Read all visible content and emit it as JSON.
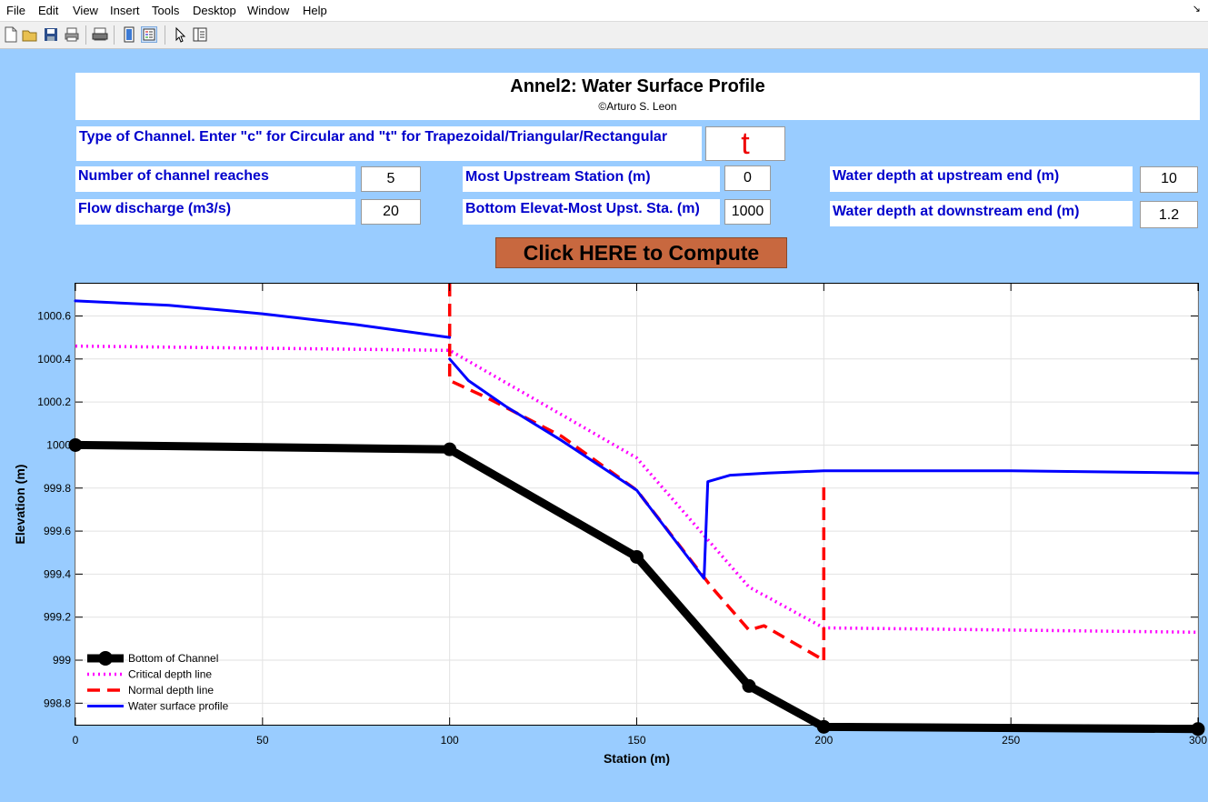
{
  "menu": [
    "File",
    "Edit",
    "View",
    "Insert",
    "Tools",
    "Desktop",
    "Window",
    "Help"
  ],
  "menu_corner_icon": "figure-dock-arrow-icon",
  "toolbar": {
    "icons": [
      "new-figure-icon",
      "open-file-icon",
      "save-icon",
      "print-icon",
      "print-preview-icon",
      "colorbar-icon",
      "legend-icon",
      "pointer-arrow-icon",
      "property-editor-icon"
    ]
  },
  "header": {
    "title": "Annel2: Water Surface Profile",
    "subtitle": "©Arturo S. Leon"
  },
  "form": {
    "channel_type_label": "Type of Channel. Enter \"c\" for Circular and \"t\" for Trapezoidal/Triangular/Rectangular",
    "channel_type_value": "t",
    "num_reaches_label": "Number of channel reaches",
    "num_reaches_value": "5",
    "flow_label": "Flow discharge (m3/s)",
    "flow_value": "20",
    "upstream_station_label": "Most Upstream Station (m)",
    "upstream_station_value": "0",
    "bottom_elev_label": "Bottom Elevat-Most Upst. Sta. (m)",
    "bottom_elev_value": "1000",
    "depth_up_label": "Water depth at upstream end (m)",
    "depth_up_value": "10",
    "depth_down_label": "Water depth at downstream end (m)",
    "depth_down_value": "1.2",
    "compute_label": "Click HERE to Compute"
  },
  "chart_data": {
    "type": "line",
    "xlabel": "Station (m)",
    "ylabel": "Elevation (m)",
    "xlim": [
      0,
      300
    ],
    "ylim": [
      998.7,
      1000.75
    ],
    "xticks": [
      0,
      50,
      100,
      150,
      200,
      250,
      300
    ],
    "yticks": [
      998.8,
      999,
      999.2,
      999.4,
      999.6,
      999.8,
      1000,
      1000.2,
      1000.4,
      1000.6
    ],
    "ytick_labels": [
      "998.8",
      "999",
      "999.2",
      "999.4",
      "999.6",
      "999.8",
      "1000",
      "1000.2",
      "1000.4",
      "1000.6"
    ],
    "grid": true,
    "legend_position": "bottom-left",
    "series": [
      {
        "name": "Bottom of Channel",
        "color": "#000000",
        "style": "solid-thick-markers",
        "points": [
          [
            0,
            1000.0
          ],
          [
            100,
            999.98
          ],
          [
            150,
            999.48
          ],
          [
            180,
            998.88
          ],
          [
            200,
            998.69
          ],
          [
            300,
            998.68
          ]
        ]
      },
      {
        "name": "Critical depth line",
        "color": "#ff00ff",
        "style": "dotted",
        "points": [
          [
            0,
            1000.46
          ],
          [
            100,
            1000.44
          ],
          [
            150,
            999.94
          ],
          [
            180,
            999.34
          ],
          [
            200,
            999.15
          ],
          [
            300,
            999.13
          ]
        ]
      },
      {
        "name": "Normal depth line",
        "color": "#ff0000",
        "style": "dashed",
        "segments": [
          [
            [
              100,
              1000.75
            ],
            [
              100,
              1000.3
            ],
            [
              110,
              1000.22
            ],
            [
              130,
              1000.04
            ],
            [
              150,
              999.79
            ],
            [
              170,
              999.34
            ],
            [
              180,
              999.14
            ],
            [
              184,
              999.16
            ],
            [
              200,
              999.0
            ]
          ],
          [
            [
              200,
              999.0
            ],
            [
              200,
              999.82
            ]
          ]
        ]
      },
      {
        "name": "Water surface profile",
        "color": "#0000ff",
        "style": "solid",
        "segments": [
          [
            [
              0,
              1000.67
            ],
            [
              25,
              1000.65
            ],
            [
              50,
              1000.61
            ],
            [
              75,
              1000.56
            ],
            [
              100,
              1000.5
            ]
          ],
          [
            [
              100,
              1000.4
            ],
            [
              105,
              1000.3
            ],
            [
              115,
              1000.18
            ],
            [
              130,
              1000.02
            ],
            [
              150,
              999.79
            ],
            [
              168,
              999.38
            ],
            [
              169,
              999.83
            ],
            [
              175,
              999.86
            ],
            [
              185,
              999.87
            ],
            [
              200,
              999.88
            ],
            [
              250,
              999.88
            ],
            [
              300,
              999.87
            ]
          ]
        ]
      }
    ]
  }
}
